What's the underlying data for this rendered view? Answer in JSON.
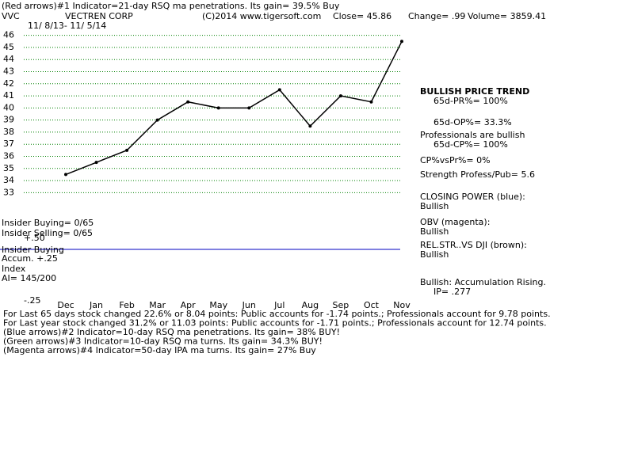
{
  "chart_data": {
    "type": "line",
    "header": "(Red arrows)#1 Indicator=21-day RSQ ma penetrations. Its gain= 39.5% Buy",
    "ticker": "VVC",
    "company": "VECTREN CORP",
    "source": "(C)2014 www.tigersoft.com",
    "close": "Close=  45.86",
    "change": "Change= .99",
    "volume": "Volume= 3859.41",
    "date_range": "11/ 8/13- 11/ 5/14",
    "categories": [
      "Dec",
      "Jan",
      "Feb",
      "Mar",
      "Apr",
      "May",
      "Jun",
      "Jul",
      "Aug",
      "Sep",
      "Oct",
      "Nov"
    ],
    "values": [
      34.5,
      35.5,
      36.5,
      39,
      40.5,
      40,
      40,
      41.5,
      38.5,
      41,
      40.5,
      45.5
    ],
    "color": "#000000",
    "ylim": [
      32.5,
      46.5
    ],
    "yticks": [
      33,
      34,
      35,
      36,
      37,
      38,
      39,
      40,
      41,
      42,
      43,
      44,
      45,
      46
    ],
    "grid": true,
    "grid_color": "#008000",
    "panel_labels": [
      "Insider Buying= 0/65",
      "Insider Selling= 0/65",
      "+.50",
      "Insider Buying",
      "Accum. +.25",
      "Index",
      "AI= 145/200",
      "-.25"
    ],
    "side_notes": [
      "BULLISH PRICE TREND",
      "65d-PR%= 100%",
      "65d-OP%= 33.3%",
      "Professionals are bullish",
      "65d-CP%= 100%",
      "CP%vsPr%=  0%",
      "Strength Profess/Pub= 5.6",
      "CLOSING POWER (blue):",
      "Bullish",
      "OBV (magenta):",
      "Bullish",
      "REL.STR..VS DJI (brown):",
      "Bullish",
      "Bullish: Accumulation Rising.",
      "IP=  .277"
    ],
    "footer_lines": [
      "For Last 65 days stock changed  22.6% or  8.04 points:  Public accounts for -1.74 points.;  Professionals account for  9.78 points.",
      "For Last year stock changed  31.2% or  11.03 points:  Public accounts for -1.71 points.;  Professionals account for  12.74 points.",
      "(Blue arrows)#2 Indicator=10-day RSQ ma penetrations. Its gain= 38% BUY!",
      "(Green arrows)#3 Indicator=10-day RSQ ma turns. Its gain= 34.3% BUY!",
      "(Magenta arrows)#4 Indicator=50-day IPA ma turns. Its gain= 27% Buy"
    ]
  }
}
